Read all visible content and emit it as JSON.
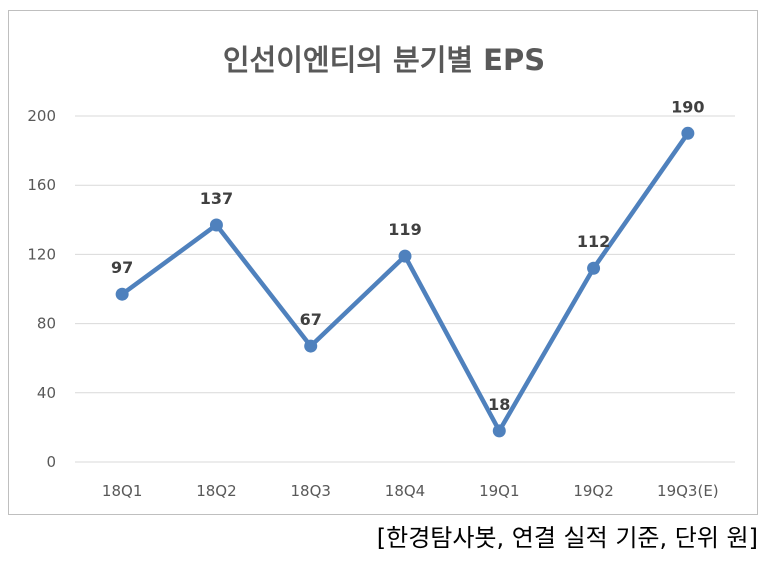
{
  "chart_data": {
    "type": "line",
    "title": "인선이엔티의 분기별 EPS",
    "categories": [
      "18Q1",
      "18Q2",
      "18Q3",
      "18Q4",
      "19Q1",
      "19Q2",
      "19Q3(E)"
    ],
    "series": [
      {
        "values": [
          97,
          137,
          67,
          119,
          18,
          112,
          190
        ]
      }
    ],
    "yticks": [
      0,
      40,
      80,
      120,
      160,
      200
    ],
    "ylim": [
      0,
      200
    ],
    "grid": true,
    "legend": "none",
    "color": "#4f81bd"
  },
  "source_note": "[한경탐사봇, 연결 실적 기준, 단위 원]"
}
